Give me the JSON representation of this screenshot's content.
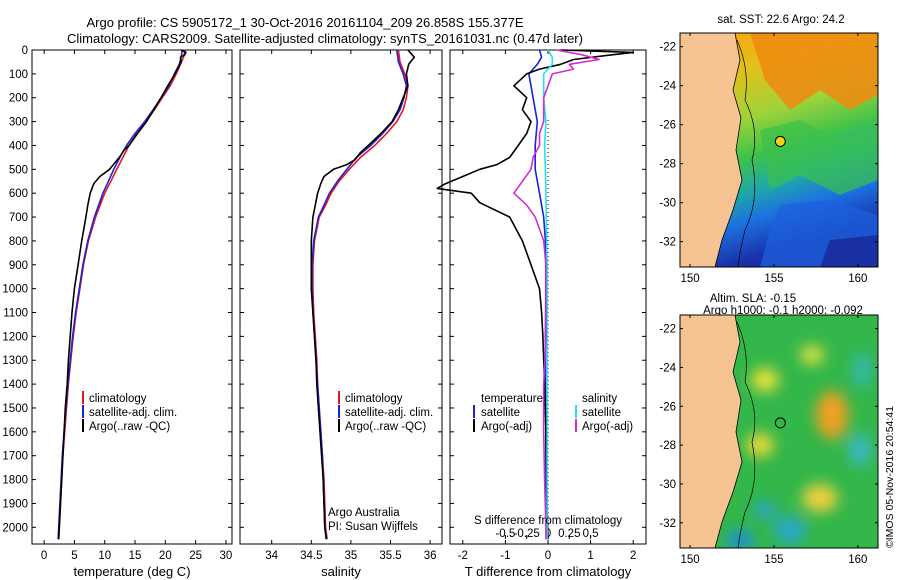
{
  "header": {
    "line1": "Argo profile: CS 5905172_1 30-Oct-2016 20161104_209 26.858S 155.377E",
    "line2": "Climatology: CARS2009. Satellite-adjusted climatology: synTS_20161031.nc (0.47d later)"
  },
  "colors": {
    "climatology": "#e8161b",
    "satellite": "#1a24d6",
    "argo": "#000000",
    "sat_salinity": "#22e0f0",
    "argo_adj_salinity": "#d42ad4"
  },
  "chart_data": [
    {
      "id": "temperature",
      "type": "line",
      "xlabel": "temperature (deg C)",
      "xlim": [
        -2,
        31
      ],
      "xticks": [
        "0",
        "5",
        "10",
        "15",
        "20",
        "25",
        "30"
      ],
      "ylim": [
        0,
        2070
      ],
      "yticks": [
        "0",
        "100",
        "200",
        "300",
        "400",
        "500",
        "600",
        "700",
        "800",
        "900",
        "1000",
        "1100",
        "1200",
        "1300",
        "1400",
        "1500",
        "1600",
        "1700",
        "1800",
        "1900",
        "2000"
      ],
      "legend": [
        "climatology",
        "satellite-adj. clim.",
        "Argo(..raw -QC)"
      ],
      "series": [
        {
          "name": "climatology",
          "color": "climatology",
          "depth": [
            0,
            30,
            60,
            100,
            150,
            200,
            250,
            300,
            350,
            400,
            450,
            500,
            550,
            600,
            700,
            800,
            900,
            1000,
            1100,
            1200,
            1300,
            1400,
            1500,
            1600,
            1700,
            1800,
            1900,
            2000,
            2050
          ],
          "values": [
            23.3,
            23.0,
            22.5,
            21.8,
            20.8,
            19.5,
            18.2,
            16.8,
            15.3,
            14.0,
            13.0,
            12.0,
            11.0,
            10.0,
            8.5,
            7.3,
            6.5,
            5.9,
            5.3,
            4.8,
            4.4,
            4.0,
            3.7,
            3.4,
            3.1,
            2.9,
            2.7,
            2.5,
            2.4
          ]
        },
        {
          "name": "satellite-adj. clim.",
          "color": "satellite",
          "depth": [
            0,
            30,
            60,
            100,
            150,
            200,
            250,
            300,
            350,
            400,
            450,
            500,
            550,
            600,
            700,
            800,
            900,
            1000,
            1100,
            1200,
            1300,
            1400,
            1500,
            1600,
            1700,
            1800,
            1900,
            2000,
            2050
          ],
          "values": [
            22.8,
            22.6,
            22.3,
            21.5,
            20.6,
            19.3,
            18.0,
            16.6,
            15.0,
            13.6,
            12.5,
            11.5,
            10.6,
            9.7,
            8.3,
            7.2,
            6.4,
            5.8,
            5.2,
            4.7,
            4.3,
            3.9,
            3.6,
            3.3,
            3.0,
            2.8,
            2.6,
            2.4,
            2.3
          ]
        },
        {
          "name": "Argo(..raw -QC)",
          "color": "argo",
          "depth": [
            0,
            10,
            20,
            30,
            50,
            80,
            100,
            150,
            200,
            250,
            300,
            350,
            400,
            420,
            450,
            500,
            530,
            560,
            600,
            650,
            700,
            800,
            900,
            1000,
            1100,
            1200,
            1300,
            1400,
            1500,
            1600,
            1700,
            1800,
            1900,
            2000,
            2050
          ],
          "values": [
            22.6,
            23.4,
            23.2,
            22.5,
            22.6,
            22.0,
            21.6,
            20.4,
            19.3,
            18.1,
            16.9,
            15.4,
            14.0,
            13.2,
            12.4,
            10.8,
            9.2,
            8.2,
            7.6,
            7.2,
            6.9,
            6.2,
            5.6,
            5.0,
            4.6,
            4.3,
            4.0,
            3.8,
            3.5,
            3.3,
            3.1,
            2.9,
            2.7,
            2.5,
            2.4
          ]
        }
      ]
    },
    {
      "id": "salinity",
      "type": "line",
      "xlabel": "salinity",
      "xlim": [
        33.6,
        36.15
      ],
      "xticks": [
        "34",
        "34.5",
        "35",
        "35.5",
        "36"
      ],
      "ylim": [
        0,
        2070
      ],
      "legend": [
        "climatology",
        "satellite-adj. clim.",
        "Argo(..raw -QC)"
      ],
      "annotation": [
        "Argo Australia",
        "PI: Susan Wijffels"
      ],
      "series": [
        {
          "name": "climatology",
          "color": "climatology",
          "depth": [
            0,
            50,
            100,
            150,
            200,
            250,
            300,
            350,
            400,
            450,
            500,
            550,
            600,
            650,
            700,
            800,
            900,
            1000,
            1100,
            1200,
            1300,
            1400,
            1500,
            1600,
            1700,
            1800,
            1900,
            2000,
            2050
          ],
          "values": [
            35.6,
            35.62,
            35.68,
            35.72,
            35.7,
            35.66,
            35.58,
            35.45,
            35.3,
            35.12,
            34.98,
            34.85,
            34.75,
            34.68,
            34.6,
            34.54,
            34.52,
            34.52,
            34.53,
            34.55,
            34.57,
            34.58,
            34.6,
            34.62,
            34.64,
            34.66,
            34.67,
            34.68,
            34.7
          ]
        },
        {
          "name": "satellite-adj. clim.",
          "color": "satellite",
          "depth": [
            0,
            50,
            100,
            150,
            200,
            250,
            300,
            350,
            400,
            450,
            500,
            550,
            600,
            650,
            700,
            800,
            900,
            1000,
            1100,
            1200,
            1300,
            1400,
            1500,
            1600,
            1700,
            1800,
            1900,
            2000,
            2050
          ],
          "values": [
            35.58,
            35.6,
            35.66,
            35.7,
            35.67,
            35.62,
            35.53,
            35.4,
            35.25,
            35.07,
            34.95,
            34.83,
            34.73,
            34.66,
            34.59,
            34.53,
            34.51,
            34.51,
            34.52,
            34.54,
            34.56,
            34.58,
            34.6,
            34.62,
            34.64,
            34.65,
            34.66,
            34.67,
            34.69
          ]
        },
        {
          "name": "Argo(..raw -QC)",
          "color": "argo",
          "depth": [
            0,
            30,
            60,
            100,
            150,
            200,
            250,
            300,
            350,
            400,
            430,
            460,
            480,
            500,
            530,
            560,
            600,
            650,
            700,
            800,
            900,
            1000,
            1100,
            1200,
            1300,
            1400,
            1500,
            1600,
            1700,
            1800,
            1900,
            2000,
            2050
          ],
          "values": [
            35.72,
            35.8,
            35.73,
            35.7,
            35.72,
            35.66,
            35.6,
            35.52,
            35.38,
            35.22,
            35.12,
            35.05,
            34.95,
            34.78,
            34.66,
            34.62,
            34.58,
            34.55,
            34.52,
            34.5,
            34.5,
            34.5,
            34.52,
            34.54,
            34.56,
            34.57,
            34.59,
            34.61,
            34.63,
            34.65,
            34.66,
            34.67,
            34.69
          ]
        }
      ]
    },
    {
      "id": "differences",
      "type": "line",
      "xlabel": "T difference from climatology",
      "xlabel_top": "S difference from climatology",
      "xlim": [
        -2.3,
        2.3
      ],
      "xticks": [
        "-2",
        "-1",
        "0",
        "1",
        "2"
      ],
      "xticks_top": [
        {
          "value": -1.0,
          "label": "-0.5"
        },
        {
          "value": -0.5,
          "label": "-0.25"
        },
        {
          "value": 0,
          "label": "0"
        },
        {
          "value": 0.5,
          "label": "0.25"
        },
        {
          "value": 1.0,
          "label": "0.5"
        }
      ],
      "ylim": [
        0,
        2070
      ],
      "legend_left": {
        "title": "temperature",
        "items": [
          "satellite",
          "Argo(-adj)"
        ]
      },
      "legend_right": {
        "title": "salinity",
        "items": [
          "satellite",
          "Argo(-adj)"
        ]
      },
      "series": [
        {
          "name": "T satellite",
          "color": "satellite",
          "depth": [
            0,
            30,
            60,
            100,
            150,
            200,
            300,
            400,
            500,
            600,
            700,
            800,
            900,
            1000,
            1200,
            1400,
            1600,
            1800,
            2000,
            2050
          ],
          "values": [
            -0.2,
            -0.15,
            -0.25,
            -0.45,
            -0.4,
            -0.35,
            -0.25,
            -0.3,
            -0.3,
            -0.2,
            -0.1,
            -0.06,
            -0.05,
            -0.05,
            -0.06,
            -0.06,
            -0.05,
            -0.05,
            -0.04,
            -0.04
          ]
        },
        {
          "name": "T Argo(-adj)",
          "color": "argo",
          "depth": [
            0,
            10,
            20,
            40,
            60,
            80,
            100,
            150,
            200,
            250,
            300,
            350,
            400,
            450,
            480,
            500,
            530,
            560,
            580,
            600,
            640,
            700,
            800,
            900,
            1000,
            1100,
            1200,
            1300,
            1400,
            1500,
            1600,
            1700,
            1800,
            1900,
            2000,
            2050
          ],
          "values": [
            0.3,
            2.0,
            1.5,
            0.6,
            0.3,
            -0.2,
            -0.5,
            -0.8,
            -0.5,
            -0.6,
            -0.4,
            -0.5,
            -0.7,
            -0.9,
            -1.2,
            -1.6,
            -2.0,
            -2.4,
            -2.6,
            -1.8,
            -1.6,
            -0.9,
            -0.6,
            -0.4,
            -0.2,
            -0.15,
            -0.12,
            -0.1,
            -0.08,
            -0.06,
            -0.05,
            -0.04,
            -0.03,
            -0.02,
            -0.01,
            0.0
          ]
        },
        {
          "name": "S satellite",
          "color": "sat_salinity",
          "depth": [
            0,
            30,
            60,
            100,
            150,
            200,
            300,
            400,
            500,
            600,
            700,
            800,
            900,
            1000,
            1200,
            1400,
            1600,
            1800,
            2000,
            2050
          ],
          "values": [
            0.0,
            0.1,
            0.1,
            -0.1,
            -0.1,
            -0.1,
            -0.05,
            -0.08,
            -0.06,
            -0.05,
            -0.04,
            -0.03,
            -0.02,
            -0.02,
            -0.02,
            -0.02,
            -0.02,
            -0.02,
            -0.02,
            -0.02
          ]
        },
        {
          "name": "S Argo(-adj)",
          "color": "argo_adj_salinity",
          "depth": [
            0,
            20,
            40,
            60,
            80,
            100,
            150,
            200,
            250,
            300,
            350,
            400,
            450,
            500,
            550,
            600,
            650,
            700,
            750,
            800,
            900,
            1000,
            1200,
            1400,
            1600,
            1800,
            2000,
            2050
          ],
          "values": [
            0.2,
            0.8,
            1.2,
            0.5,
            0.6,
            0.1,
            0.0,
            -0.1,
            -0.1,
            -0.1,
            -0.2,
            -0.2,
            -0.35,
            -0.4,
            -0.6,
            -0.8,
            -0.5,
            -0.3,
            -0.2,
            -0.1,
            -0.05,
            -0.05,
            -0.05,
            -0.1,
            -0.1,
            -0.08,
            -0.05,
            -0.05
          ]
        }
      ]
    }
  ],
  "maps": {
    "sst_title": "sat. SST: 22.6  Argo: 24.2",
    "sla_title_1": "Altim. SLA: -0.15",
    "sla_title_2": "Argo h1000: -0.1  h2000: -0.092",
    "lat_ticks": [
      "-22",
      "-24",
      "-26",
      "-28",
      "-30",
      "-32"
    ],
    "lon_ticks": [
      "150",
      "155",
      "160"
    ],
    "float_position": {
      "lon": 155.377,
      "lat": -26.858
    }
  },
  "credit": "©IMOS 05-Nov-2016 20:54:41"
}
